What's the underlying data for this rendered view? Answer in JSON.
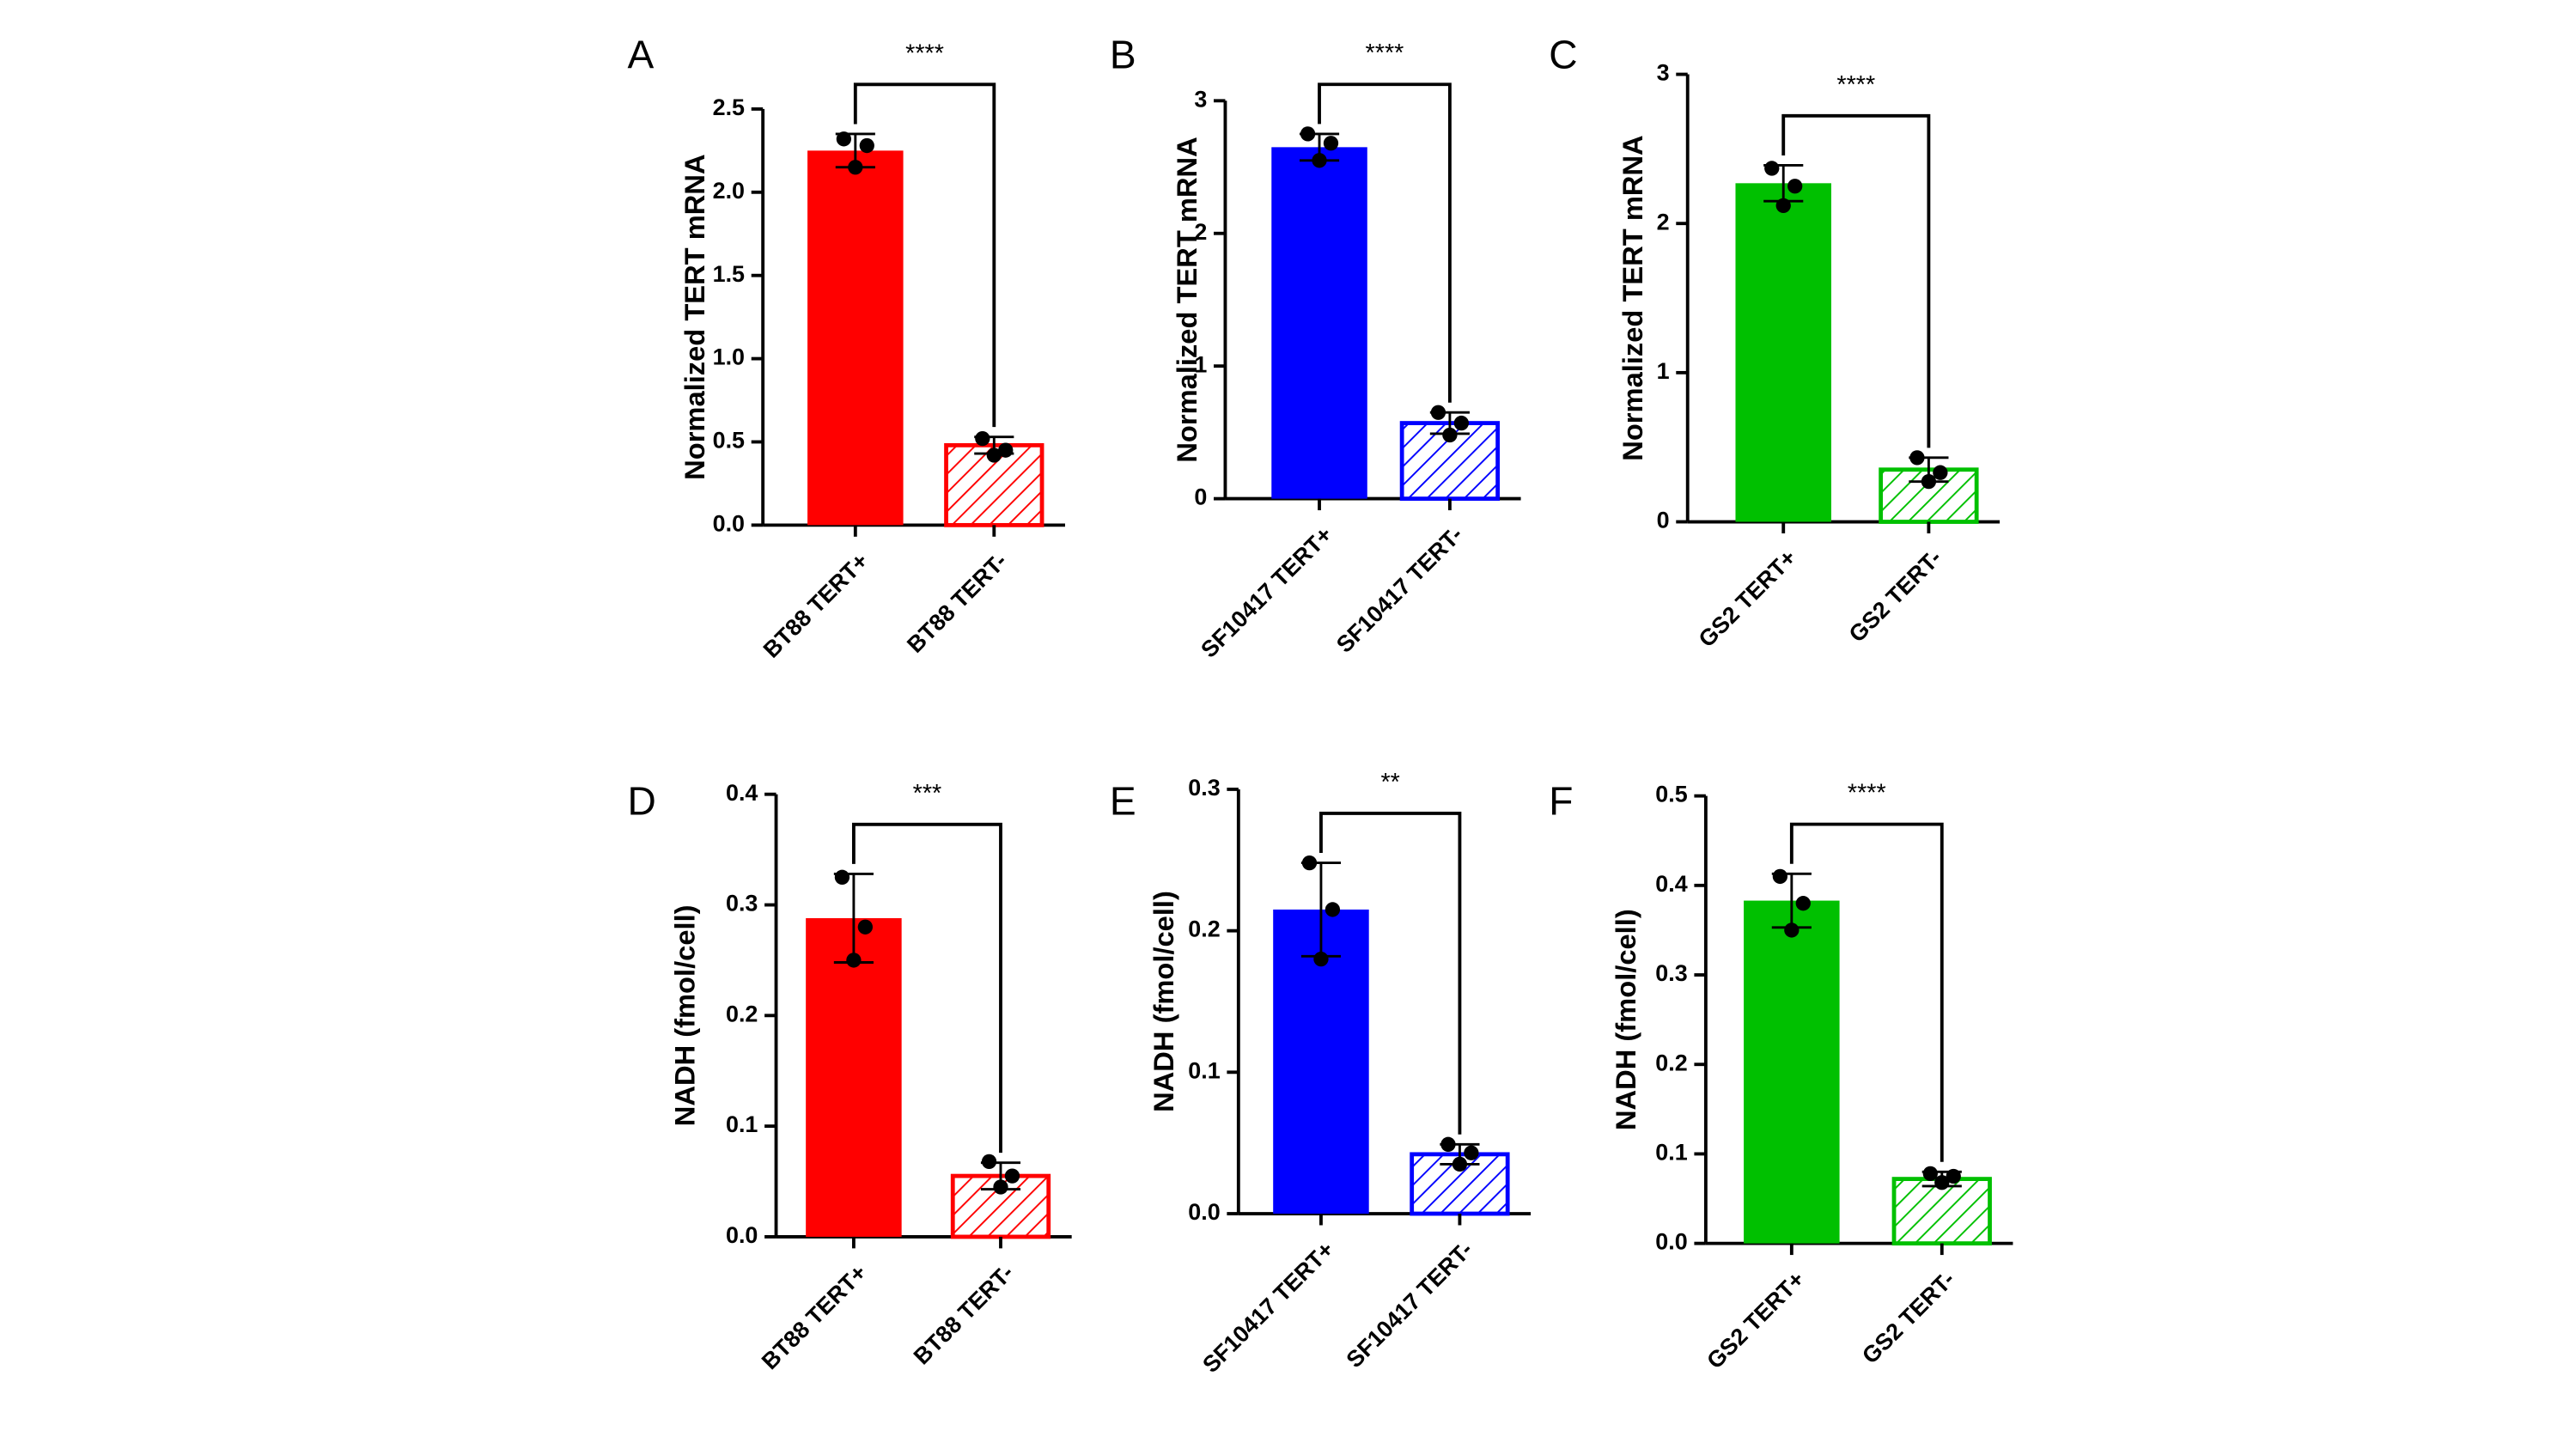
{
  "chart_data": [
    {
      "type": "bar",
      "panel": "A",
      "ylabel": "Normalized TERT mRNA",
      "categories": [
        "BT88 TERT+",
        "BT88 TERT-"
      ],
      "values": [
        2.25,
        0.48
      ],
      "errors": [
        0.1,
        0.05
      ],
      "points": [
        [
          2.32,
          2.28,
          2.15
        ],
        [
          0.52,
          0.45,
          0.42
        ]
      ],
      "colors": [
        "#ff0000",
        "#ff0000"
      ],
      "hatched": [
        false,
        true
      ],
      "significance": "****",
      "ylim": [
        0,
        2.5
      ],
      "yticks": [
        {
          "value": 0,
          "label": "0.0"
        },
        0.5,
        {
          "value": 1,
          "label": "1.0"
        },
        1.5,
        {
          "value": 2,
          "label": "2.0"
        },
        2.5
      ]
    },
    {
      "type": "bar",
      "panel": "B",
      "ylabel": "Normalized TERT mRNA",
      "categories": [
        "SF10417 TERT+",
        "SF10417 TERT-"
      ],
      "values": [
        2.65,
        0.57
      ],
      "errors": [
        0.1,
        0.08
      ],
      "points": [
        [
          2.75,
          2.68,
          2.55
        ],
        [
          0.65,
          0.57,
          0.48
        ]
      ],
      "colors": [
        "#0000ff",
        "#0000ff"
      ],
      "hatched": [
        false,
        true
      ],
      "significance": "****",
      "ylim": [
        0,
        3
      ],
      "yticks": [
        0,
        1,
        2,
        3
      ]
    },
    {
      "type": "bar",
      "panel": "C",
      "ylabel": "Normalized TERT mRNA",
      "categories": [
        "GS2 TERT+",
        "GS2 TERT-"
      ],
      "values": [
        2.27,
        0.35
      ],
      "errors": [
        0.12,
        0.08
      ],
      "points": [
        [
          2.37,
          2.25,
          2.12
        ],
        [
          0.43,
          0.33,
          0.27
        ]
      ],
      "colors": [
        "#00c000",
        "#00c000"
      ],
      "hatched": [
        false,
        true
      ],
      "significance": "****",
      "ylim": [
        0,
        3
      ],
      "yticks": [
        0,
        1,
        2,
        3
      ]
    },
    {
      "type": "bar",
      "panel": "D",
      "ylabel": "NADH (fmol/cell)",
      "categories": [
        "BT88 TERT+",
        "BT88 TERT-"
      ],
      "values": [
        0.288,
        0.055
      ],
      "errors": [
        0.04,
        0.012
      ],
      "points": [
        [
          0.325,
          0.28,
          0.25
        ],
        [
          0.068,
          0.055,
          0.045
        ]
      ],
      "colors": [
        "#ff0000",
        "#ff0000"
      ],
      "hatched": [
        false,
        true
      ],
      "significance": "***",
      "ylim": [
        0,
        0.4
      ],
      "yticks": [
        {
          "value": 0,
          "label": "0.0"
        },
        0.1,
        0.2,
        0.3,
        0.4
      ]
    },
    {
      "type": "bar",
      "panel": "E",
      "ylabel": "NADH (fmol/cell)",
      "categories": [
        "SF10417 TERT+",
        "SF10417 TERT-"
      ],
      "values": [
        0.215,
        0.042
      ],
      "errors": [
        0.033,
        0.007
      ],
      "points": [
        [
          0.248,
          0.215,
          0.18
        ],
        [
          0.049,
          0.043,
          0.035
        ]
      ],
      "colors": [
        "#0000ff",
        "#0000ff"
      ],
      "hatched": [
        false,
        true
      ],
      "significance": "**",
      "ylim": [
        0,
        0.3
      ],
      "yticks": [
        {
          "value": 0,
          "label": "0.0"
        },
        0.1,
        0.2,
        0.3
      ]
    },
    {
      "type": "bar",
      "panel": "F",
      "ylabel": "NADH (fmol/cell)",
      "categories": [
        "GS2 TERT+",
        "GS2 TERT-"
      ],
      "values": [
        0.383,
        0.072
      ],
      "errors": [
        0.03,
        0.008
      ],
      "points": [
        [
          0.41,
          0.38,
          0.35
        ],
        [
          0.078,
          0.075,
          0.068
        ]
      ],
      "colors": [
        "#00c000",
        "#00c000"
      ],
      "hatched": [
        false,
        true
      ],
      "significance": "****",
      "ylim": [
        0,
        0.5
      ],
      "yticks": [
        {
          "value": 0,
          "label": "0.0"
        },
        0.1,
        0.2,
        0.3,
        0.4,
        0.5
      ]
    }
  ]
}
